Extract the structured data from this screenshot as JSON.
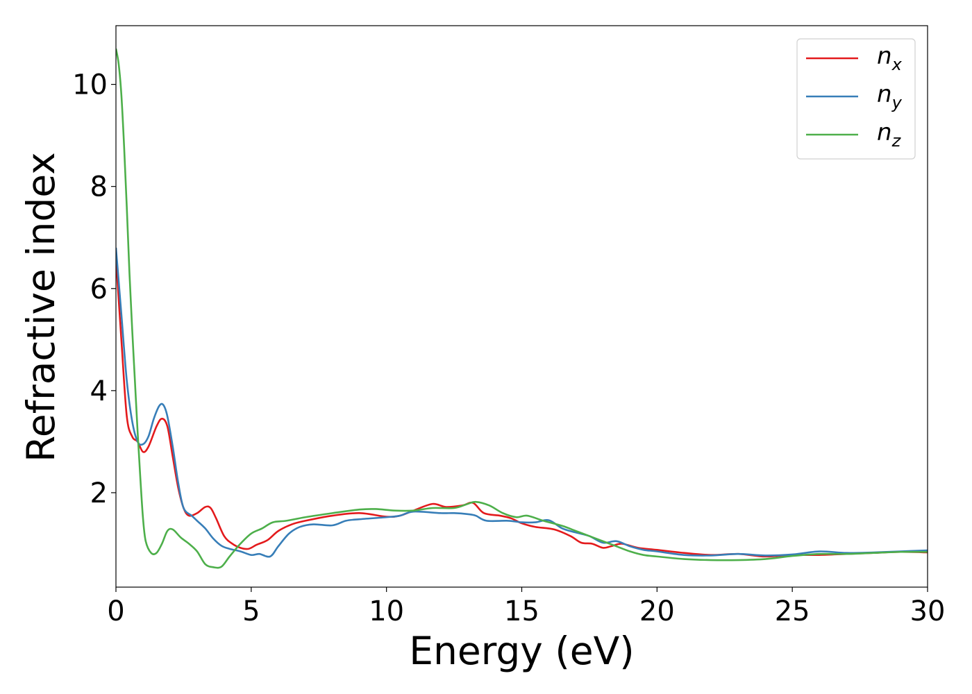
{
  "chart_data": {
    "type": "line",
    "title": "",
    "xlabel": "Energy (eV)",
    "ylabel": "Refractive index",
    "xlim": [
      0,
      30
    ],
    "ylim": [
      0.15,
      11.15
    ],
    "xticks": [
      0,
      5,
      10,
      15,
      20,
      25,
      30
    ],
    "yticks": [
      2,
      4,
      6,
      8,
      10
    ],
    "grid": false,
    "legend_position": "top-right",
    "series": [
      {
        "name": "n_x",
        "label_base": "n",
        "label_sub": "x",
        "color": "#e31a1c",
        "points": [
          [
            0,
            6.6
          ],
          [
            0.2,
            5.0
          ],
          [
            0.4,
            3.5
          ],
          [
            0.6,
            3.1
          ],
          [
            0.8,
            3.0
          ],
          [
            1.0,
            2.8
          ],
          [
            1.2,
            2.9
          ],
          [
            1.5,
            3.3
          ],
          [
            1.7,
            3.45
          ],
          [
            1.9,
            3.3
          ],
          [
            2.1,
            2.7
          ],
          [
            2.3,
            2.1
          ],
          [
            2.5,
            1.7
          ],
          [
            2.7,
            1.55
          ],
          [
            3.0,
            1.6
          ],
          [
            3.3,
            1.72
          ],
          [
            3.5,
            1.7
          ],
          [
            3.7,
            1.5
          ],
          [
            4.0,
            1.15
          ],
          [
            4.3,
            1.0
          ],
          [
            4.6,
            0.92
          ],
          [
            4.9,
            0.9
          ],
          [
            5.2,
            0.98
          ],
          [
            5.6,
            1.07
          ],
          [
            6.0,
            1.25
          ],
          [
            6.5,
            1.38
          ],
          [
            7.0,
            1.45
          ],
          [
            8.0,
            1.55
          ],
          [
            9.0,
            1.6
          ],
          [
            10.0,
            1.53
          ],
          [
            10.5,
            1.55
          ],
          [
            11.0,
            1.65
          ],
          [
            11.7,
            1.78
          ],
          [
            12.2,
            1.72
          ],
          [
            12.8,
            1.75
          ],
          [
            13.2,
            1.8
          ],
          [
            13.6,
            1.6
          ],
          [
            14.2,
            1.55
          ],
          [
            14.6,
            1.5
          ],
          [
            15.0,
            1.4
          ],
          [
            15.5,
            1.33
          ],
          [
            16.2,
            1.28
          ],
          [
            16.8,
            1.15
          ],
          [
            17.2,
            1.02
          ],
          [
            17.6,
            1.0
          ],
          [
            18.0,
            0.92
          ],
          [
            18.3,
            0.95
          ],
          [
            18.7,
            1.0
          ],
          [
            19.3,
            0.92
          ],
          [
            20.0,
            0.88
          ],
          [
            21.0,
            0.82
          ],
          [
            22.0,
            0.78
          ],
          [
            23.0,
            0.8
          ],
          [
            24.0,
            0.75
          ],
          [
            25.0,
            0.78
          ],
          [
            26.0,
            0.78
          ],
          [
            27.0,
            0.8
          ],
          [
            28.0,
            0.82
          ],
          [
            29.0,
            0.84
          ],
          [
            30.0,
            0.83
          ]
        ]
      },
      {
        "name": "n_y",
        "label_base": "n",
        "label_sub": "y",
        "color": "#377eb8",
        "points": [
          [
            0,
            6.8
          ],
          [
            0.2,
            5.5
          ],
          [
            0.4,
            4.2
          ],
          [
            0.6,
            3.4
          ],
          [
            0.8,
            3.0
          ],
          [
            1.0,
            2.95
          ],
          [
            1.2,
            3.1
          ],
          [
            1.4,
            3.45
          ],
          [
            1.6,
            3.7
          ],
          [
            1.75,
            3.72
          ],
          [
            1.9,
            3.5
          ],
          [
            2.1,
            2.9
          ],
          [
            2.3,
            2.2
          ],
          [
            2.5,
            1.7
          ],
          [
            2.8,
            1.55
          ],
          [
            3.0,
            1.45
          ],
          [
            3.3,
            1.3
          ],
          [
            3.6,
            1.1
          ],
          [
            3.9,
            0.96
          ],
          [
            4.2,
            0.9
          ],
          [
            4.6,
            0.85
          ],
          [
            5.0,
            0.78
          ],
          [
            5.3,
            0.8
          ],
          [
            5.7,
            0.75
          ],
          [
            6.0,
            0.95
          ],
          [
            6.4,
            1.2
          ],
          [
            6.8,
            1.33
          ],
          [
            7.3,
            1.38
          ],
          [
            8.0,
            1.36
          ],
          [
            8.5,
            1.45
          ],
          [
            9.0,
            1.48
          ],
          [
            10.0,
            1.52
          ],
          [
            10.5,
            1.55
          ],
          [
            11.0,
            1.63
          ],
          [
            12.0,
            1.6
          ],
          [
            12.5,
            1.6
          ],
          [
            13.0,
            1.58
          ],
          [
            13.3,
            1.55
          ],
          [
            13.7,
            1.45
          ],
          [
            14.5,
            1.45
          ],
          [
            15.0,
            1.42
          ],
          [
            15.5,
            1.42
          ],
          [
            16.0,
            1.46
          ],
          [
            16.5,
            1.3
          ],
          [
            17.0,
            1.22
          ],
          [
            17.5,
            1.15
          ],
          [
            18.0,
            1.02
          ],
          [
            18.5,
            1.05
          ],
          [
            19.0,
            0.95
          ],
          [
            19.5,
            0.88
          ],
          [
            20.0,
            0.85
          ],
          [
            21.0,
            0.78
          ],
          [
            22.0,
            0.77
          ],
          [
            23.0,
            0.8
          ],
          [
            24.0,
            0.77
          ],
          [
            25.0,
            0.79
          ],
          [
            26.0,
            0.85
          ],
          [
            27.0,
            0.82
          ],
          [
            28.0,
            0.83
          ],
          [
            29.0,
            0.85
          ],
          [
            30.0,
            0.87
          ]
        ]
      },
      {
        "name": "n_z",
        "label_base": "n",
        "label_sub": "z",
        "color": "#4daf4a",
        "points": [
          [
            0,
            10.7
          ],
          [
            0.1,
            10.4
          ],
          [
            0.2,
            9.8
          ],
          [
            0.3,
            8.8
          ],
          [
            0.4,
            7.6
          ],
          [
            0.5,
            6.3
          ],
          [
            0.6,
            5.2
          ],
          [
            0.7,
            4.2
          ],
          [
            0.8,
            3.2
          ],
          [
            0.9,
            2.3
          ],
          [
            1.0,
            1.5
          ],
          [
            1.1,
            1.05
          ],
          [
            1.3,
            0.82
          ],
          [
            1.5,
            0.82
          ],
          [
            1.7,
            1.0
          ],
          [
            1.9,
            1.25
          ],
          [
            2.1,
            1.28
          ],
          [
            2.4,
            1.12
          ],
          [
            2.7,
            1.0
          ],
          [
            3.0,
            0.85
          ],
          [
            3.3,
            0.6
          ],
          [
            3.6,
            0.54
          ],
          [
            3.9,
            0.55
          ],
          [
            4.2,
            0.75
          ],
          [
            4.6,
            1.0
          ],
          [
            5.0,
            1.2
          ],
          [
            5.4,
            1.3
          ],
          [
            5.8,
            1.42
          ],
          [
            6.3,
            1.45
          ],
          [
            7.0,
            1.52
          ],
          [
            8.0,
            1.6
          ],
          [
            9.0,
            1.67
          ],
          [
            9.6,
            1.68
          ],
          [
            10.3,
            1.65
          ],
          [
            11.0,
            1.65
          ],
          [
            11.7,
            1.7
          ],
          [
            12.5,
            1.7
          ],
          [
            13.0,
            1.78
          ],
          [
            13.3,
            1.82
          ],
          [
            13.8,
            1.75
          ],
          [
            14.3,
            1.6
          ],
          [
            14.8,
            1.52
          ],
          [
            15.2,
            1.55
          ],
          [
            15.8,
            1.45
          ],
          [
            16.5,
            1.35
          ],
          [
            17.0,
            1.25
          ],
          [
            17.5,
            1.15
          ],
          [
            18.0,
            1.05
          ],
          [
            18.5,
            0.95
          ],
          [
            19.0,
            0.85
          ],
          [
            19.5,
            0.78
          ],
          [
            20.0,
            0.75
          ],
          [
            21.0,
            0.7
          ],
          [
            22.0,
            0.68
          ],
          [
            23.0,
            0.68
          ],
          [
            24.0,
            0.7
          ],
          [
            25.0,
            0.76
          ],
          [
            26.0,
            0.8
          ],
          [
            27.0,
            0.8
          ],
          [
            28.0,
            0.82
          ],
          [
            29.0,
            0.84
          ],
          [
            30.0,
            0.84
          ]
        ]
      }
    ]
  }
}
